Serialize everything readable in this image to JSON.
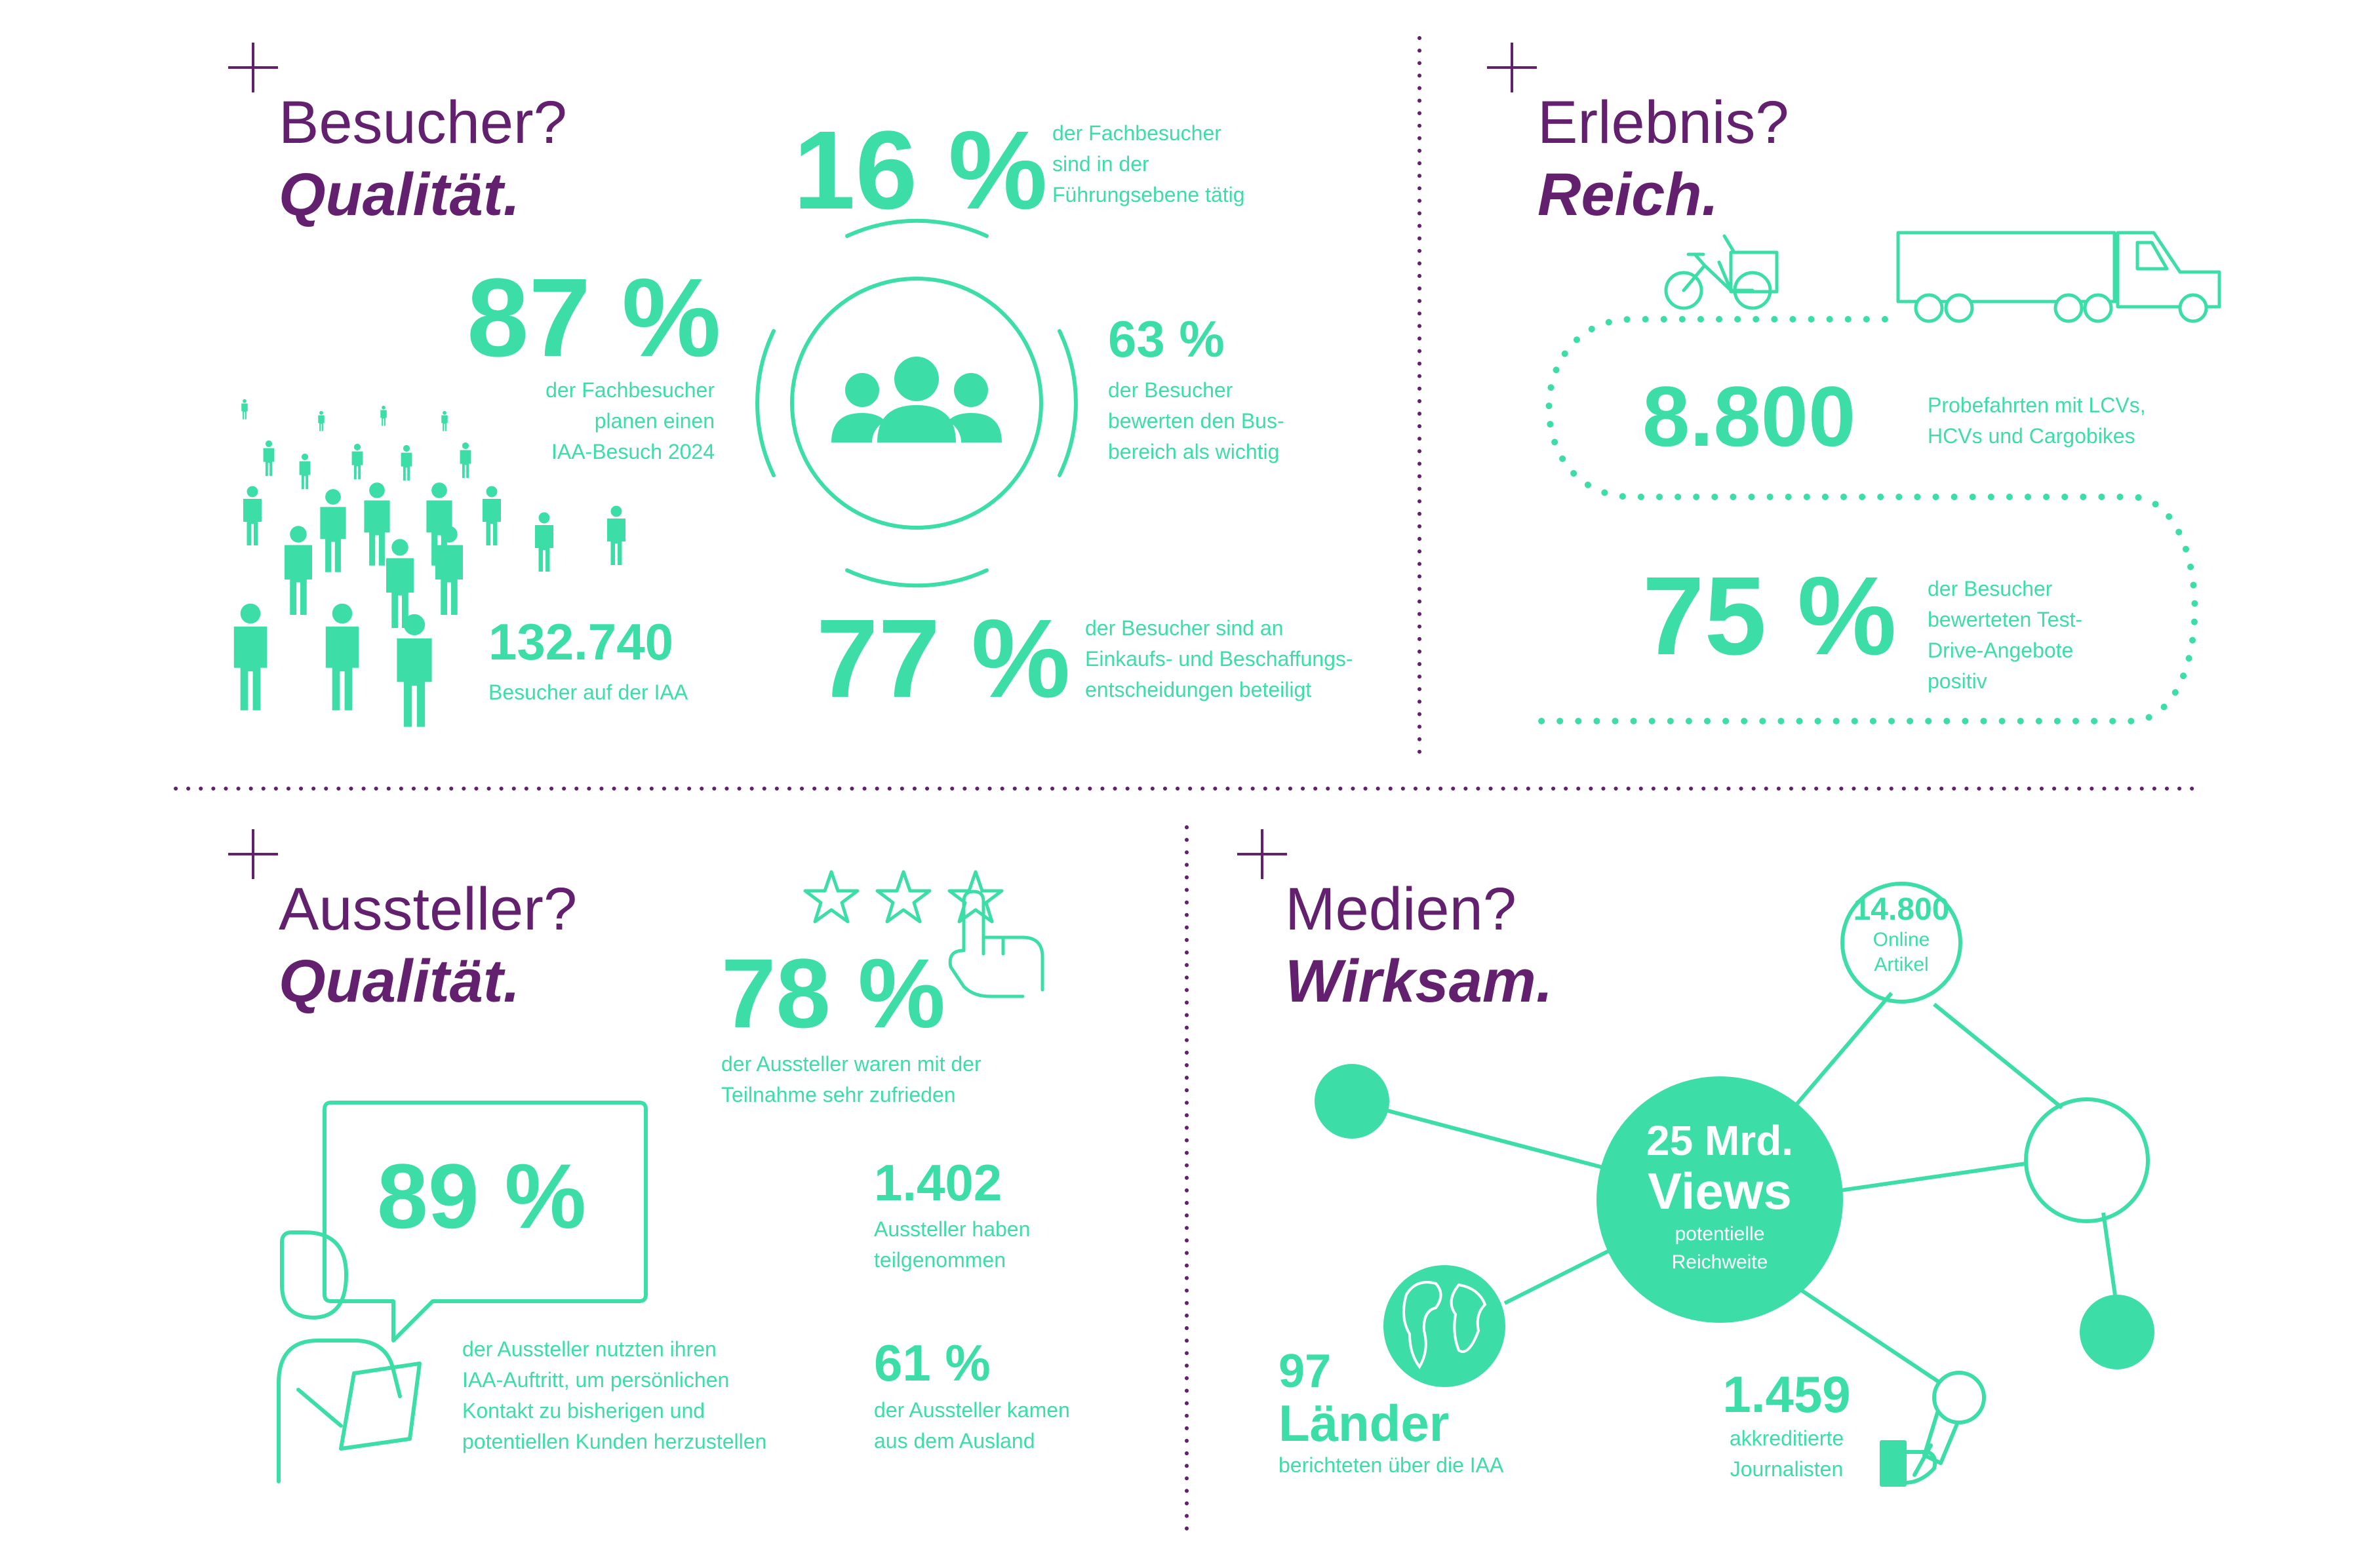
{
  "colors": {
    "purple": "#62206f",
    "green": "#3ddda8",
    "background": "#ffffff"
  },
  "icons": [
    "plus-icon",
    "crowd-icon",
    "group-icon",
    "cargo-bike-icon",
    "truck-icon",
    "stars-icon",
    "pointing-hand-icon",
    "person-tablet-icon",
    "speech-bubble-icon",
    "globe-icon",
    "microphone-icon"
  ],
  "besucher": {
    "heading": "Besucher?",
    "subheading": "Qualität.",
    "stat_16": {
      "value": "16 %",
      "text": [
        "der Fachbesucher",
        "sind in der",
        "Führungsebene tätig"
      ]
    },
    "stat_87": {
      "value": "87 %",
      "text": [
        "der Fachbesucher",
        "planen einen",
        "IAA-Besuch 2024"
      ]
    },
    "stat_63": {
      "value": "63 %",
      "text": [
        "der Besucher",
        "bewerten den Bus-",
        "bereich als wichtig"
      ]
    },
    "stat_132740": {
      "value": "132.740",
      "text": "Besucher auf der IAA"
    },
    "stat_77": {
      "value": "77 %",
      "text": [
        "der Besucher sind an",
        "Einkaufs- und Beschaffungs-",
        "entscheidungen beteiligt"
      ]
    }
  },
  "erlebnis": {
    "heading": "Erlebnis?",
    "subheading": "Reich.",
    "stat_8800": {
      "value": "8.800",
      "text": [
        "Probefahrten mit LCVs,",
        "HCVs und Cargobikes"
      ]
    },
    "stat_75": {
      "value": "75 %",
      "text": [
        "der Besucher",
        "bewerteten Test-",
        "Drive-Angebote",
        "positiv"
      ]
    }
  },
  "aussteller": {
    "heading": "Aussteller?",
    "subheading": "Qualität.",
    "stat_78": {
      "value": "78 %",
      "text": [
        "der Aussteller waren mit der",
        "Teilnahme sehr zufrieden"
      ]
    },
    "stat_89": {
      "value": "89 %",
      "text": [
        "der Aussteller nutzten ihren",
        "IAA-Auftritt, um persönlichen",
        "Kontakt zu bisherigen und",
        "potentiellen Kunden herzustellen"
      ]
    },
    "stat_1402": {
      "value": "1.402",
      "text": [
        "Aussteller haben",
        "teilgenommen"
      ]
    },
    "stat_61": {
      "value": "61 %",
      "text": [
        "der Aussteller kamen",
        "aus dem Ausland"
      ]
    }
  },
  "medien": {
    "heading": "Medien?",
    "subheading": "Wirksam.",
    "views": {
      "value_line1": "25 Mrd.",
      "value_line2": "Views",
      "text": [
        "potentielle",
        "Reichweite"
      ]
    },
    "online": {
      "value": "14.800",
      "text": [
        "Online",
        "Artikel"
      ]
    },
    "laender": {
      "value_line1": "97",
      "value_line2": "Länder",
      "text": "berichteten über die IAA"
    },
    "journalisten": {
      "value": "1.459",
      "text": [
        "akkreditierte",
        "Journalisten"
      ]
    }
  }
}
